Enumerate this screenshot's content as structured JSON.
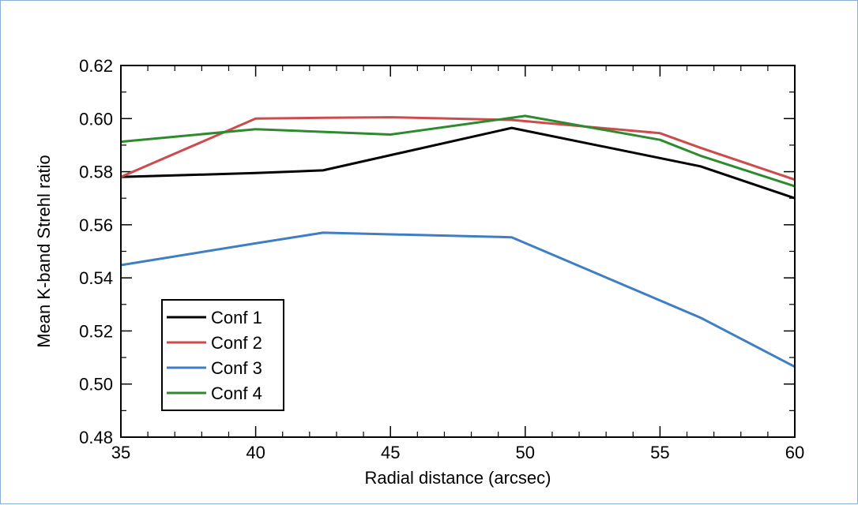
{
  "chart_data": {
    "type": "line",
    "title": "",
    "xlabel": "Radial distance (arcsec)",
    "ylabel": "Mean K-band Strehl ratio",
    "xlim": [
      35,
      60
    ],
    "ylim": [
      0.48,
      0.62
    ],
    "xticks": [
      35,
      40,
      45,
      50,
      55,
      60
    ],
    "xtick_labels": [
      "35",
      "40",
      "45",
      "50",
      "55",
      "60"
    ],
    "yticks": [
      0.48,
      0.5,
      0.52,
      0.54,
      0.56,
      0.58,
      0.6,
      0.62
    ],
    "ytick_labels": [
      "0.48",
      "0.50",
      "0.52",
      "0.54",
      "0.56",
      "0.58",
      "0.60",
      "0.62"
    ],
    "grid": false,
    "legend_position": "bottom-left",
    "series": [
      {
        "name": "Conf 1",
        "color": "#000000",
        "x": [
          35,
          40,
          42.5,
          49.5,
          56.5,
          60
        ],
        "y": [
          0.578,
          0.5795,
          0.5805,
          0.5965,
          0.582,
          0.57
        ]
      },
      {
        "name": "Conf 2",
        "color": "#cc4b4b",
        "x": [
          35,
          40,
          42.5,
          45,
          49.5,
          55,
          56.5,
          60
        ],
        "y": [
          0.578,
          0.6,
          0.6003,
          0.6005,
          0.5995,
          0.5945,
          0.589,
          0.577
        ]
      },
      {
        "name": "Conf 3",
        "color": "#3f7ec4",
        "x": [
          35,
          40,
          42.5,
          49.5,
          56.5,
          60
        ],
        "y": [
          0.5448,
          0.553,
          0.557,
          0.5553,
          0.525,
          0.5065
        ]
      },
      {
        "name": "Conf 4",
        "color": "#2d8a2d",
        "x": [
          35,
          40,
          42.5,
          45,
          50,
          55,
          56.5,
          60
        ],
        "y": [
          0.5913,
          0.596,
          0.595,
          0.594,
          0.601,
          0.592,
          0.586,
          0.5745
        ]
      }
    ]
  }
}
